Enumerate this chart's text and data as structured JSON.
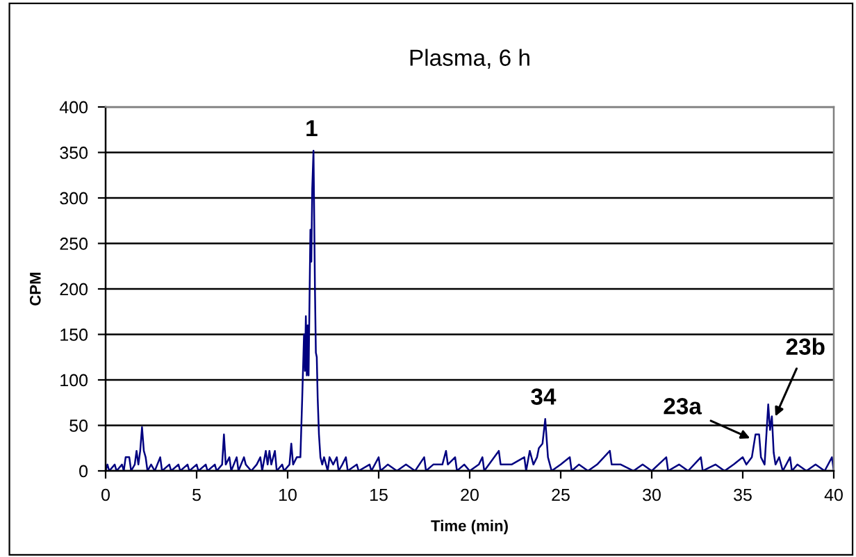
{
  "chart_data": {
    "type": "line",
    "title": "Plasma, 6 h",
    "xlabel": "Time (min)",
    "ylabel": "CPM",
    "x": [
      0,
      0.1,
      0.2,
      0.5,
      0.6,
      0.9,
      1.0,
      1.1,
      1.3,
      1.4,
      1.6,
      1.7,
      1.8,
      1.9,
      2.0,
      2.1,
      2.2,
      2.3,
      2.5,
      2.7,
      3.0,
      3.1,
      3.5,
      3.6,
      4.0,
      4.1,
      4.5,
      4.6,
      5.0,
      5.1,
      5.5,
      5.6,
      6.0,
      6.1,
      6.4,
      6.5,
      6.6,
      6.8,
      6.9,
      7.2,
      7.3,
      7.6,
      7.7,
      8.0,
      8.3,
      8.5,
      8.6,
      8.8,
      8.9,
      9.0,
      9.1,
      9.3,
      9.4,
      9.7,
      9.8,
      10.1,
      10.2,
      10.3,
      10.5,
      10.7,
      10.8,
      10.9,
      10.95,
      11.0,
      11.05,
      11.1,
      11.15,
      11.25,
      11.3,
      11.35,
      11.42,
      11.5,
      11.55,
      11.6,
      11.65,
      11.72,
      11.8,
      11.9,
      12.0,
      12.2,
      12.3,
      12.5,
      12.7,
      12.8,
      13.0,
      13.2,
      13.3,
      13.8,
      13.9,
      14.5,
      14.6,
      15.0,
      15.1,
      15.5,
      16.0,
      16.5,
      17.0,
      17.5,
      17.6,
      18.0,
      18.5,
      18.7,
      18.8,
      19.2,
      19.3,
      19.7,
      20.0,
      20.5,
      20.7,
      20.8,
      21.6,
      21.7,
      22.3,
      23.0,
      23.1,
      23.3,
      23.5,
      23.7,
      23.8,
      24.0,
      24.15,
      24.3,
      24.5,
      25.0,
      25.5,
      25.6,
      26.0,
      26.5,
      27.0,
      27.7,
      27.8,
      28.3,
      29.0,
      29.5,
      30.0,
      30.8,
      30.9,
      31.5,
      32.0,
      32.7,
      32.8,
      33.5,
      34.0,
      34.5,
      35.0,
      35.2,
      35.5,
      35.7,
      35.9,
      36.0,
      36.2,
      36.4,
      36.5,
      36.6,
      36.7,
      36.8,
      37.0,
      37.2,
      37.6,
      37.7,
      38.0,
      38.5,
      39.0,
      39.5,
      39.9,
      40.0
    ],
    "series": [
      {
        "color": "#000080",
        "values": [
          0,
          7,
          0,
          7,
          0,
          7,
          0,
          15,
          15,
          0,
          7,
          22,
          7,
          22,
          48,
          22,
          15,
          0,
          7,
          0,
          15,
          0,
          7,
          0,
          7,
          0,
          7,
          0,
          7,
          0,
          7,
          0,
          7,
          0,
          7,
          40,
          7,
          15,
          0,
          15,
          0,
          15,
          7,
          0,
          7,
          15,
          0,
          22,
          7,
          22,
          7,
          22,
          0,
          7,
          0,
          7,
          30,
          7,
          15,
          15,
          80,
          150,
          110,
          170,
          105,
          160,
          105,
          265,
          230,
          310,
          352,
          200,
          130,
          125,
          80,
          40,
          15,
          7,
          15,
          0,
          15,
          7,
          15,
          0,
          7,
          15,
          0,
          7,
          0,
          7,
          0,
          15,
          0,
          7,
          0,
          7,
          0,
          15,
          0,
          7,
          7,
          22,
          7,
          15,
          0,
          7,
          0,
          7,
          15,
          0,
          22,
          7,
          7,
          15,
          0,
          22,
          7,
          15,
          25,
          30,
          57,
          15,
          0,
          7,
          15,
          0,
          7,
          0,
          7,
          22,
          7,
          7,
          0,
          7,
          0,
          15,
          0,
          7,
          0,
          15,
          0,
          7,
          0,
          7,
          15,
          7,
          15,
          40,
          40,
          15,
          7,
          73,
          45,
          60,
          20,
          7,
          15,
          0,
          15,
          0,
          7,
          0,
          7,
          0,
          15,
          0
        ]
      }
    ],
    "xlim": [
      0,
      40
    ],
    "xticks": [
      0,
      5,
      10,
      15,
      20,
      25,
      30,
      35,
      40
    ],
    "ylim": [
      0,
      400
    ],
    "yticks": [
      0,
      50,
      100,
      150,
      200,
      250,
      300,
      350,
      400
    ],
    "grid": "y",
    "marker": "none",
    "line_style": "solid",
    "annotations": [
      {
        "text": "1",
        "x": 11.42,
        "y": 352
      },
      {
        "text": "34",
        "x": 24.15,
        "y": 57
      },
      {
        "text": "23a",
        "x": 35.5,
        "y": 35
      },
      {
        "text": "23b",
        "x": 36.75,
        "y": 58
      }
    ]
  }
}
